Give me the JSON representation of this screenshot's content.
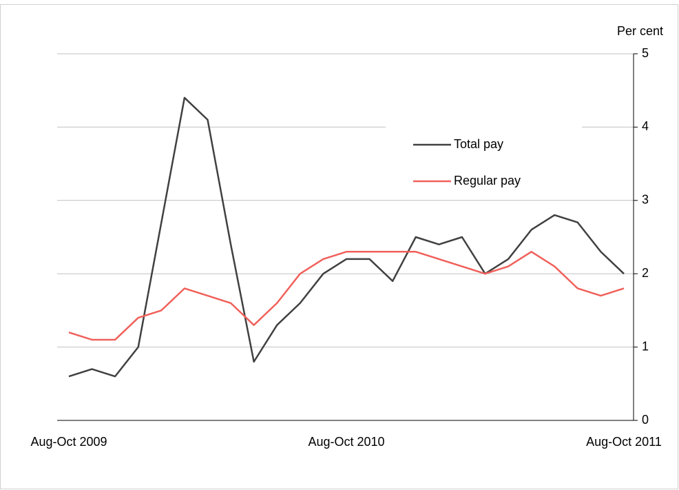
{
  "chart_data": {
    "type": "line",
    "y_axis_label": "Per cent",
    "categories": [
      "Aug-Oct 2009",
      null,
      null,
      null,
      null,
      null,
      null,
      null,
      null,
      null,
      null,
      null,
      "Aug-Oct 2010",
      null,
      null,
      null,
      null,
      null,
      null,
      null,
      null,
      null,
      null,
      null,
      "Aug-Oct 2011"
    ],
    "series": [
      {
        "name": "Total pay",
        "color": "#404040",
        "values": [
          0.6,
          0.7,
          0.6,
          1.0,
          2.7,
          4.4,
          4.1,
          2.4,
          0.8,
          1.3,
          1.6,
          2.0,
          2.2,
          2.2,
          1.9,
          2.5,
          2.4,
          2.5,
          2.0,
          2.2,
          2.6,
          2.8,
          2.7,
          2.3,
          2.0
        ]
      },
      {
        "name": "Regular pay",
        "color": "#f0605a",
        "values": [
          1.2,
          1.1,
          1.1,
          1.4,
          1.5,
          1.8,
          1.7,
          1.6,
          1.3,
          1.6,
          2.0,
          2.2,
          2.3,
          2.3,
          2.3,
          2.3,
          2.2,
          2.1,
          2.0,
          2.1,
          2.3,
          2.1,
          1.8,
          1.7,
          1.8
        ]
      }
    ],
    "ylim": [
      0,
      5
    ],
    "yticks": [
      0,
      1,
      2,
      3,
      4,
      5
    ],
    "grid": true,
    "y_axis_side": "right"
  }
}
